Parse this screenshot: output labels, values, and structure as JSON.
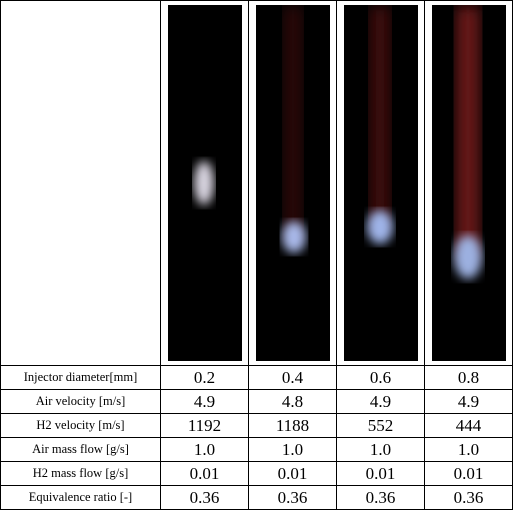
{
  "table": {
    "rows": [
      [
        "Injector diameter[mm]",
        "0.2",
        "0.4",
        "0.6",
        "0.8"
      ],
      [
        "Air velocity [m/s]",
        "4.9",
        "4.8",
        "4.9",
        "4.9"
      ],
      [
        "H2 velocity [m/s]",
        "1192",
        "1188",
        "552",
        "444"
      ],
      [
        "Air mass flow [g/s]",
        "1.0",
        "1.0",
        "1.0",
        "1.0"
      ],
      [
        "H2 mass flow [g/s]",
        "0.01",
        "0.01",
        "0.01",
        "0.01"
      ],
      [
        "Equivalence ratio [-]",
        "0.36",
        "0.36",
        "0.36",
        "0.36"
      ]
    ]
  }
}
